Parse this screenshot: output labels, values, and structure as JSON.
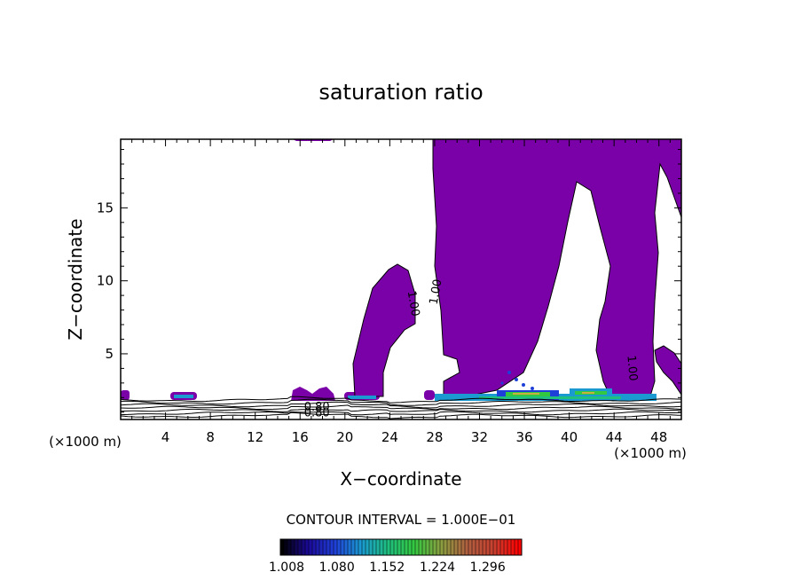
{
  "chart_data": {
    "type": "heatmap",
    "title": "saturation ratio",
    "xlabel": "X−coordinate",
    "ylabel": "Z−coordinate",
    "x_unit_left": "(×1000 m)",
    "x_unit_right": "(×1000 m)",
    "xlim": [
      0,
      50
    ],
    "ylim": [
      0.5,
      19.7
    ],
    "x_ticks": [
      4,
      8,
      12,
      16,
      20,
      24,
      28,
      32,
      36,
      40,
      44,
      48
    ],
    "y_ticks": [
      5,
      10,
      15
    ],
    "contour_interval_label": "CONTOUR INTERVAL = 1.000E−01",
    "contour_labels": [
      {
        "text": "1.00",
        "x": 25.8,
        "z": 8.4,
        "angle": 80
      },
      {
        "text": "1.00",
        "x": 28.4,
        "z": 9.2,
        "angle": -80
      },
      {
        "text": "1.00",
        "x": 45.3,
        "z": 4.0,
        "angle": 85
      },
      {
        "text": "0.80",
        "x": 17.5,
        "z": 1.1,
        "angle": 0
      },
      {
        "text": "0.80",
        "x": 17.5,
        "z": 0.7,
        "angle": 0
      }
    ],
    "colorbar": {
      "labels": [
        "1.008",
        "1.080",
        "1.152",
        "1.224",
        "1.296"
      ],
      "colors": [
        "#000000",
        "#1b0a9a",
        "#1f40d8",
        "#1a9ad0",
        "#1fbf80",
        "#34c840",
        "#8aa040",
        "#b06040",
        "#c84030",
        "#ff0000"
      ]
    },
    "fill_color": "#7a00a8"
  }
}
